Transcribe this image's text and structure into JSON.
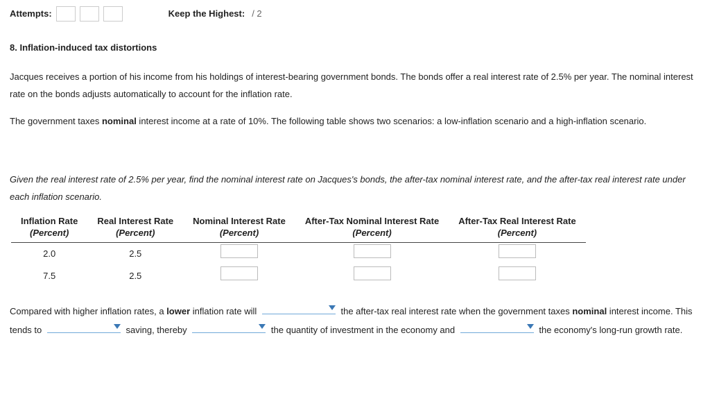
{
  "topbar": {
    "attempts_label": "Attempts:",
    "keep_label": "Keep the Highest:",
    "keep_value": "/ 2"
  },
  "question": {
    "number": "8.",
    "title": "Inflation-induced tax distortions"
  },
  "para1": "Jacques receives a portion of his income from his holdings of interest-bearing government bonds. The bonds offer a real interest rate of 2.5% per year.",
  "para2": "The nominal interest rate on the bonds adjusts automatically to account for the inflation rate.",
  "para3a": "The government taxes ",
  "para3b": "nominal",
  "para3c": " interest income at a rate of 10%. The following table shows two scenarios: a low-inflation scenario and a high-inflation scenario.",
  "instruction": "Given the real interest rate of 2.5% per year, find the nominal interest rate on Jacques's bonds, the after-tax nominal interest rate, and the after-tax real interest rate under each inflation scenario.",
  "table": {
    "headers": {
      "c1": "Inflation Rate",
      "c2": "Real Interest Rate",
      "c3": "Nominal Interest Rate",
      "c4": "After-Tax Nominal Interest Rate",
      "c5": "After-Tax Real Interest Rate",
      "unit": "(Percent)"
    },
    "rows": [
      {
        "inflation": "2.0",
        "real": "2.5"
      },
      {
        "inflation": "7.5",
        "real": "2.5"
      }
    ]
  },
  "fill": {
    "t1": "Compared with higher inflation rates, a ",
    "t1b": "lower",
    "t2": " inflation rate will ",
    "t3": " the after-tax real interest rate when the government taxes ",
    "t3b": "nominal",
    "t4": " interest income. This tends to ",
    "t5": " saving, thereby ",
    "t6": " the quantity of investment in the economy and ",
    "t7": " the economy's long-run growth rate."
  }
}
